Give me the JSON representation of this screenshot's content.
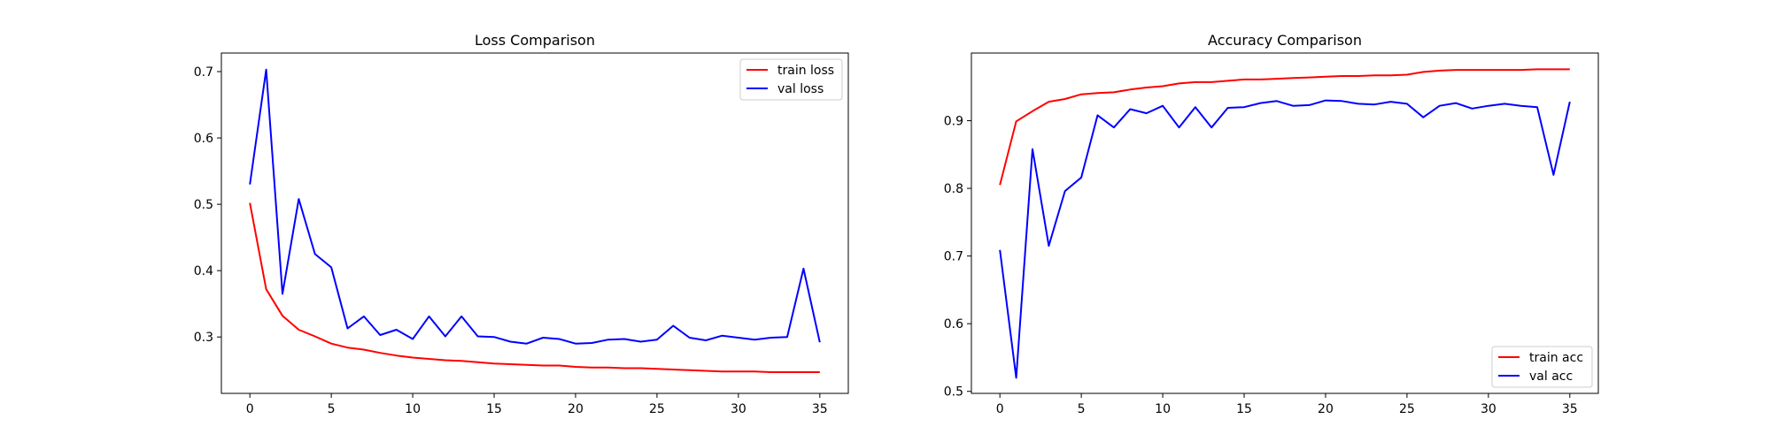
{
  "chart_data": [
    {
      "type": "line",
      "title": "Loss Comparison",
      "xlabel": "",
      "ylabel": "",
      "xlim": [
        -1.75,
        36.75
      ],
      "ylim": [
        0.215,
        0.728
      ],
      "xticks": [
        0,
        5,
        10,
        15,
        20,
        25,
        30,
        35
      ],
      "yticks": [
        0.3,
        0.4,
        0.5,
        0.6,
        0.7
      ],
      "grid": false,
      "legend_position": "upper right",
      "x": [
        0,
        1,
        2,
        3,
        4,
        5,
        6,
        7,
        8,
        9,
        10,
        11,
        12,
        13,
        14,
        15,
        16,
        17,
        18,
        19,
        20,
        21,
        22,
        23,
        24,
        25,
        26,
        27,
        28,
        29,
        30,
        31,
        32,
        33,
        34,
        35
      ],
      "series": [
        {
          "name": "train loss",
          "color": "#ff0000",
          "values": [
            0.502,
            0.372,
            0.332,
            0.311,
            0.301,
            0.29,
            0.284,
            0.281,
            0.276,
            0.272,
            0.269,
            0.267,
            0.265,
            0.264,
            0.262,
            0.26,
            0.259,
            0.258,
            0.257,
            0.257,
            0.255,
            0.254,
            0.254,
            0.253,
            0.253,
            0.252,
            0.251,
            0.25,
            0.249,
            0.248,
            0.248,
            0.248,
            0.247,
            0.247,
            0.247,
            0.247
          ]
        },
        {
          "name": "val loss",
          "color": "#0000ff",
          "values": [
            0.53,
            0.703,
            0.365,
            0.508,
            0.425,
            0.405,
            0.313,
            0.331,
            0.303,
            0.311,
            0.297,
            0.331,
            0.301,
            0.331,
            0.301,
            0.3,
            0.293,
            0.29,
            0.299,
            0.297,
            0.29,
            0.291,
            0.296,
            0.297,
            0.293,
            0.296,
            0.317,
            0.299,
            0.295,
            0.302,
            0.299,
            0.296,
            0.299,
            0.3,
            0.403,
            0.292
          ]
        }
      ]
    },
    {
      "type": "line",
      "title": "Accuracy Comparison",
      "xlabel": "",
      "ylabel": "",
      "xlim": [
        -1.75,
        36.75
      ],
      "ylim": [
        0.497,
        1.0
      ],
      "xticks": [
        0,
        5,
        10,
        15,
        20,
        25,
        30,
        35
      ],
      "yticks": [
        0.5,
        0.6,
        0.7,
        0.8,
        0.9
      ],
      "grid": false,
      "legend_position": "lower right",
      "x": [
        0,
        1,
        2,
        3,
        4,
        5,
        6,
        7,
        8,
        9,
        10,
        11,
        12,
        13,
        14,
        15,
        16,
        17,
        18,
        19,
        20,
        21,
        22,
        23,
        24,
        25,
        26,
        27,
        28,
        29,
        30,
        31,
        32,
        33,
        34,
        35
      ],
      "series": [
        {
          "name": "train acc",
          "color": "#ff0000",
          "values": [
            0.805,
            0.899,
            0.914,
            0.928,
            0.932,
            0.939,
            0.941,
            0.942,
            0.946,
            0.949,
            0.951,
            0.955,
            0.957,
            0.957,
            0.959,
            0.961,
            0.961,
            0.962,
            0.963,
            0.964,
            0.965,
            0.966,
            0.966,
            0.967,
            0.967,
            0.968,
            0.972,
            0.974,
            0.975,
            0.975,
            0.975,
            0.975,
            0.975,
            0.976,
            0.976,
            0.976
          ]
        },
        {
          "name": "val acc",
          "color": "#0000ff",
          "values": [
            0.709,
            0.52,
            0.858,
            0.715,
            0.796,
            0.816,
            0.908,
            0.89,
            0.917,
            0.911,
            0.922,
            0.89,
            0.92,
            0.89,
            0.919,
            0.92,
            0.926,
            0.929,
            0.922,
            0.923,
            0.93,
            0.929,
            0.925,
            0.924,
            0.928,
            0.925,
            0.905,
            0.922,
            0.926,
            0.918,
            0.922,
            0.925,
            0.922,
            0.92,
            0.82,
            0.928
          ]
        }
      ]
    }
  ]
}
